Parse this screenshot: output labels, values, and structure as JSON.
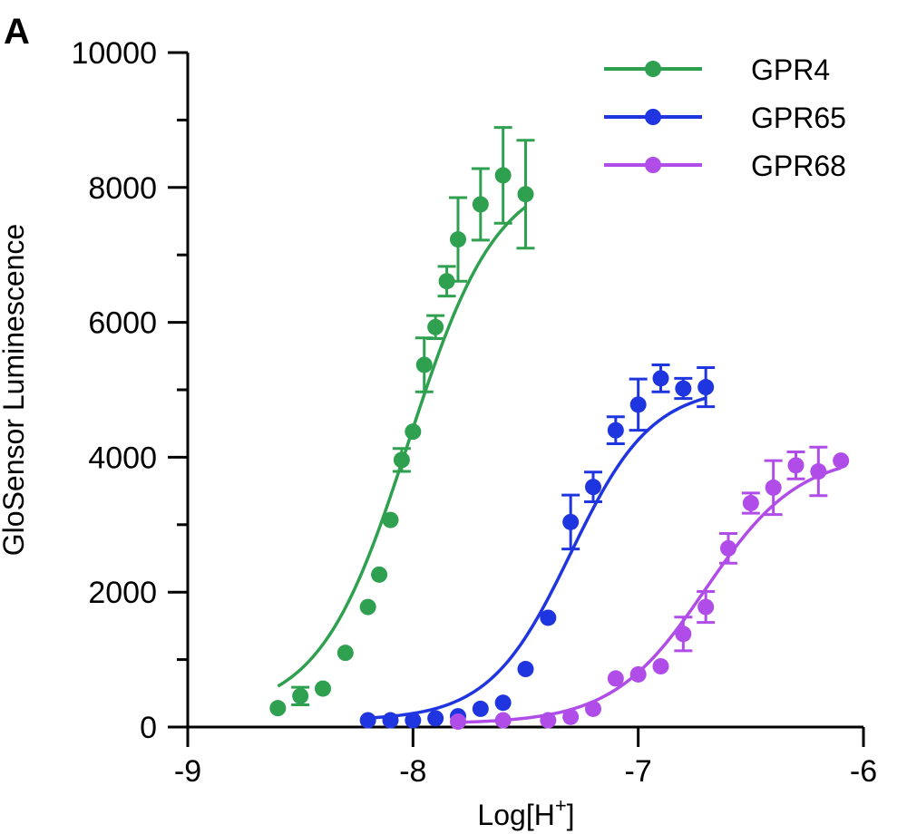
{
  "panel_label": "A",
  "chart_data": {
    "type": "scatter",
    "xlabel": "Log[H",
    "xlabel_sup": "+",
    "xlabel_end": "]",
    "ylabel": "GloSensor Luminescence",
    "xlim": [
      -9,
      -6
    ],
    "ylim": [
      0,
      10000
    ],
    "xticks": [
      -9,
      -8,
      -7,
      -6
    ],
    "xtick_labels": [
      "-9",
      "-8",
      "-7",
      "-6"
    ],
    "yticks": [
      0,
      2000,
      4000,
      6000,
      8000,
      10000
    ],
    "ytick_labels": [
      "0",
      "2000",
      "4000",
      "6000",
      "8000",
      "10000"
    ],
    "grid": false,
    "legend_position": "top-right",
    "series": [
      {
        "name": "GPR4",
        "color": "#2ea04f",
        "fit": {
          "bottom": 200,
          "top": 8250,
          "logEC50": -8.02,
          "hill": 2.2
        },
        "points": [
          {
            "x": -8.6,
            "y": 280,
            "err": 0
          },
          {
            "x": -8.5,
            "y": 460,
            "err": 130
          },
          {
            "x": -8.4,
            "y": 570,
            "err": 0
          },
          {
            "x": -8.3,
            "y": 1100,
            "err": 0
          },
          {
            "x": -8.2,
            "y": 1780,
            "err": 0
          },
          {
            "x": -8.15,
            "y": 2260,
            "err": 0
          },
          {
            "x": -8.1,
            "y": 3070,
            "err": 0
          },
          {
            "x": -8.05,
            "y": 3960,
            "err": 170
          },
          {
            "x": -8.0,
            "y": 4380,
            "err": 0
          },
          {
            "x": -7.95,
            "y": 5370,
            "err": 400
          },
          {
            "x": -7.9,
            "y": 5930,
            "err": 170
          },
          {
            "x": -7.85,
            "y": 6610,
            "err": 220
          },
          {
            "x": -7.8,
            "y": 7230,
            "err": 620
          },
          {
            "x": -7.7,
            "y": 7750,
            "err": 530
          },
          {
            "x": -7.6,
            "y": 8180,
            "err": 710
          },
          {
            "x": -7.5,
            "y": 7900,
            "err": 800
          }
        ]
      },
      {
        "name": "GPR65",
        "color": "#1f35e0",
        "fit": {
          "bottom": 100,
          "top": 5050,
          "logEC50": -7.3,
          "hill": 2.4
        },
        "points": [
          {
            "x": -8.2,
            "y": 100,
            "err": 0
          },
          {
            "x": -8.1,
            "y": 100,
            "err": 0
          },
          {
            "x": -8.0,
            "y": 100,
            "err": 0
          },
          {
            "x": -7.9,
            "y": 130,
            "err": 0
          },
          {
            "x": -7.8,
            "y": 160,
            "err": 0
          },
          {
            "x": -7.7,
            "y": 270,
            "err": 0
          },
          {
            "x": -7.6,
            "y": 360,
            "err": 0
          },
          {
            "x": -7.5,
            "y": 860,
            "err": 0
          },
          {
            "x": -7.4,
            "y": 1620,
            "err": 0
          },
          {
            "x": -7.3,
            "y": 3040,
            "err": 400
          },
          {
            "x": -7.2,
            "y": 3560,
            "err": 220
          },
          {
            "x": -7.1,
            "y": 4400,
            "err": 200
          },
          {
            "x": -7.0,
            "y": 4780,
            "err": 380
          },
          {
            "x": -6.9,
            "y": 5170,
            "err": 200
          },
          {
            "x": -6.8,
            "y": 5020,
            "err": 150
          },
          {
            "x": -6.7,
            "y": 5040,
            "err": 290
          }
        ]
      },
      {
        "name": "GPR68",
        "color": "#b04de8",
        "fit": {
          "bottom": 50,
          "top": 4050,
          "logEC50": -6.7,
          "hill": 2.1
        },
        "points": [
          {
            "x": -7.8,
            "y": 80,
            "err": 0
          },
          {
            "x": -7.6,
            "y": 100,
            "err": 0
          },
          {
            "x": -7.4,
            "y": 100,
            "err": 0
          },
          {
            "x": -7.3,
            "y": 150,
            "err": 0
          },
          {
            "x": -7.2,
            "y": 270,
            "err": 0
          },
          {
            "x": -7.1,
            "y": 720,
            "err": 0
          },
          {
            "x": -7.0,
            "y": 780,
            "err": 0
          },
          {
            "x": -6.9,
            "y": 900,
            "err": 0
          },
          {
            "x": -6.8,
            "y": 1380,
            "err": 250
          },
          {
            "x": -6.7,
            "y": 1780,
            "err": 230
          },
          {
            "x": -6.6,
            "y": 2650,
            "err": 220
          },
          {
            "x": -6.5,
            "y": 3320,
            "err": 150
          },
          {
            "x": -6.4,
            "y": 3550,
            "err": 400
          },
          {
            "x": -6.3,
            "y": 3880,
            "err": 200
          },
          {
            "x": -6.2,
            "y": 3790,
            "err": 360
          },
          {
            "x": -6.1,
            "y": 3950,
            "err": 0
          }
        ]
      }
    ]
  }
}
